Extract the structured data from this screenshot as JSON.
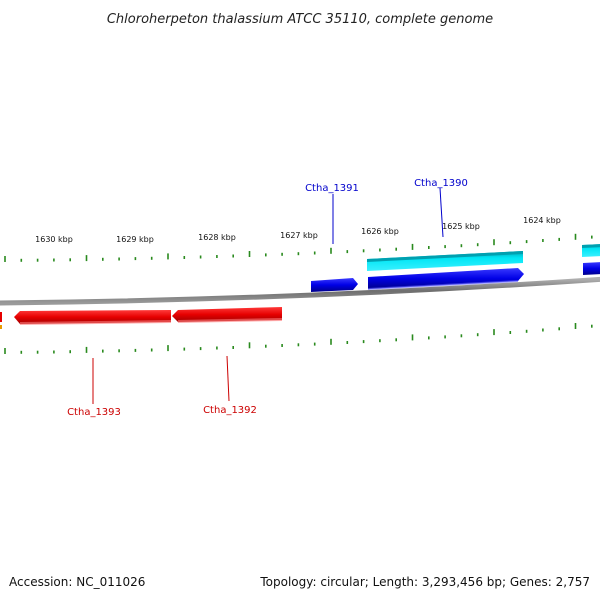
{
  "title": "Chloroherpeton thalassium ATCC 35110, complete genome",
  "footer": {
    "accession": "Accession: NC_011026",
    "summary": "Topology: circular; Length: 3,293,456 bp; Genes: 2,757"
  },
  "ruler": {
    "tick_labels": [
      "1630 kbp",
      "1629 kbp",
      "1628 kbp",
      "1627 kbp",
      "1626 kbp",
      "1625 kbp",
      "1624 kbp"
    ],
    "tick_color": "#2a8a1e"
  },
  "genes": [
    {
      "name": "Ctha_1391",
      "color": "#0000cc"
    },
    {
      "name": "Ctha_1390",
      "color": "#0000cc"
    },
    {
      "name": "Ctha_1393",
      "color": "#cc0000"
    },
    {
      "name": "Ctha_1392",
      "color": "#cc0000"
    }
  ],
  "colors": {
    "forward_strand": "#0000e6",
    "reverse_strand": "#e60000",
    "highlight": "#00d4e6",
    "backbone": "#7a7a7a"
  }
}
